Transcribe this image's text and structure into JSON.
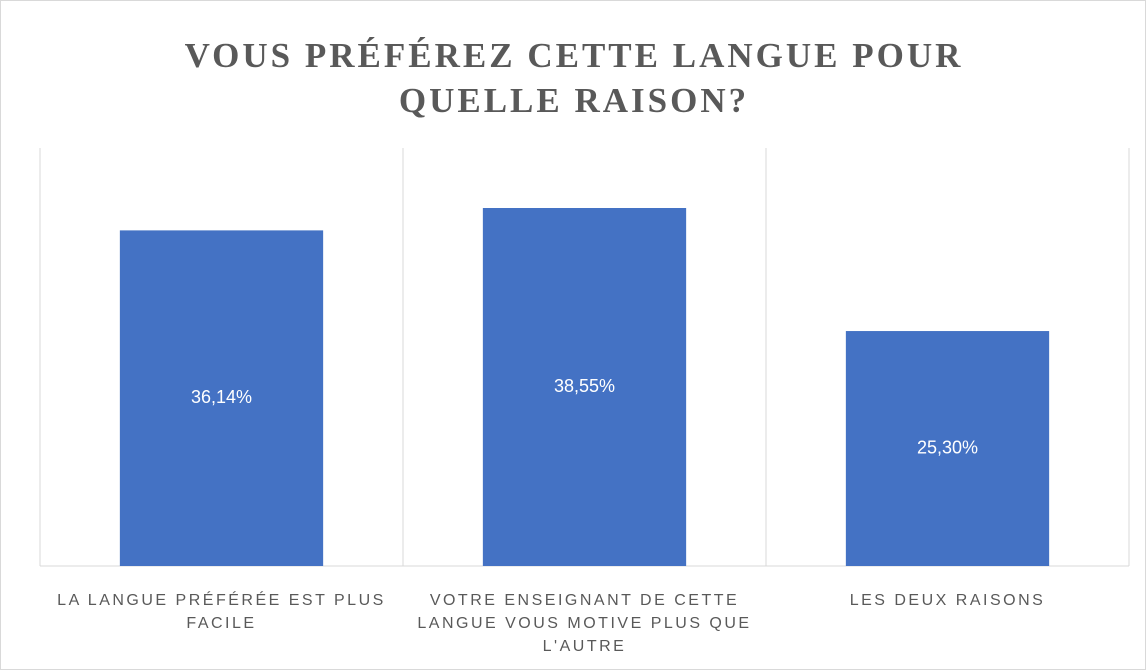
{
  "chart_data": {
    "type": "bar",
    "title": "VOUS PRÉFÉREZ CETTE LANGUE POUR QUELLE RAISON?",
    "categories": [
      "LA LANGUE PRÉFÉRÉE EST PLUS FACILE",
      "VOTRE ENSEIGNANT DE CETTE LANGUE VOUS MOTIVE PLUS QUE L'AUTRE",
      "LES DEUX RAISONS"
    ],
    "values": [
      36.14,
      38.55,
      25.3
    ],
    "value_labels": [
      "36,14%",
      "38,55%",
      "25,30%"
    ],
    "color": "#4472c4"
  }
}
